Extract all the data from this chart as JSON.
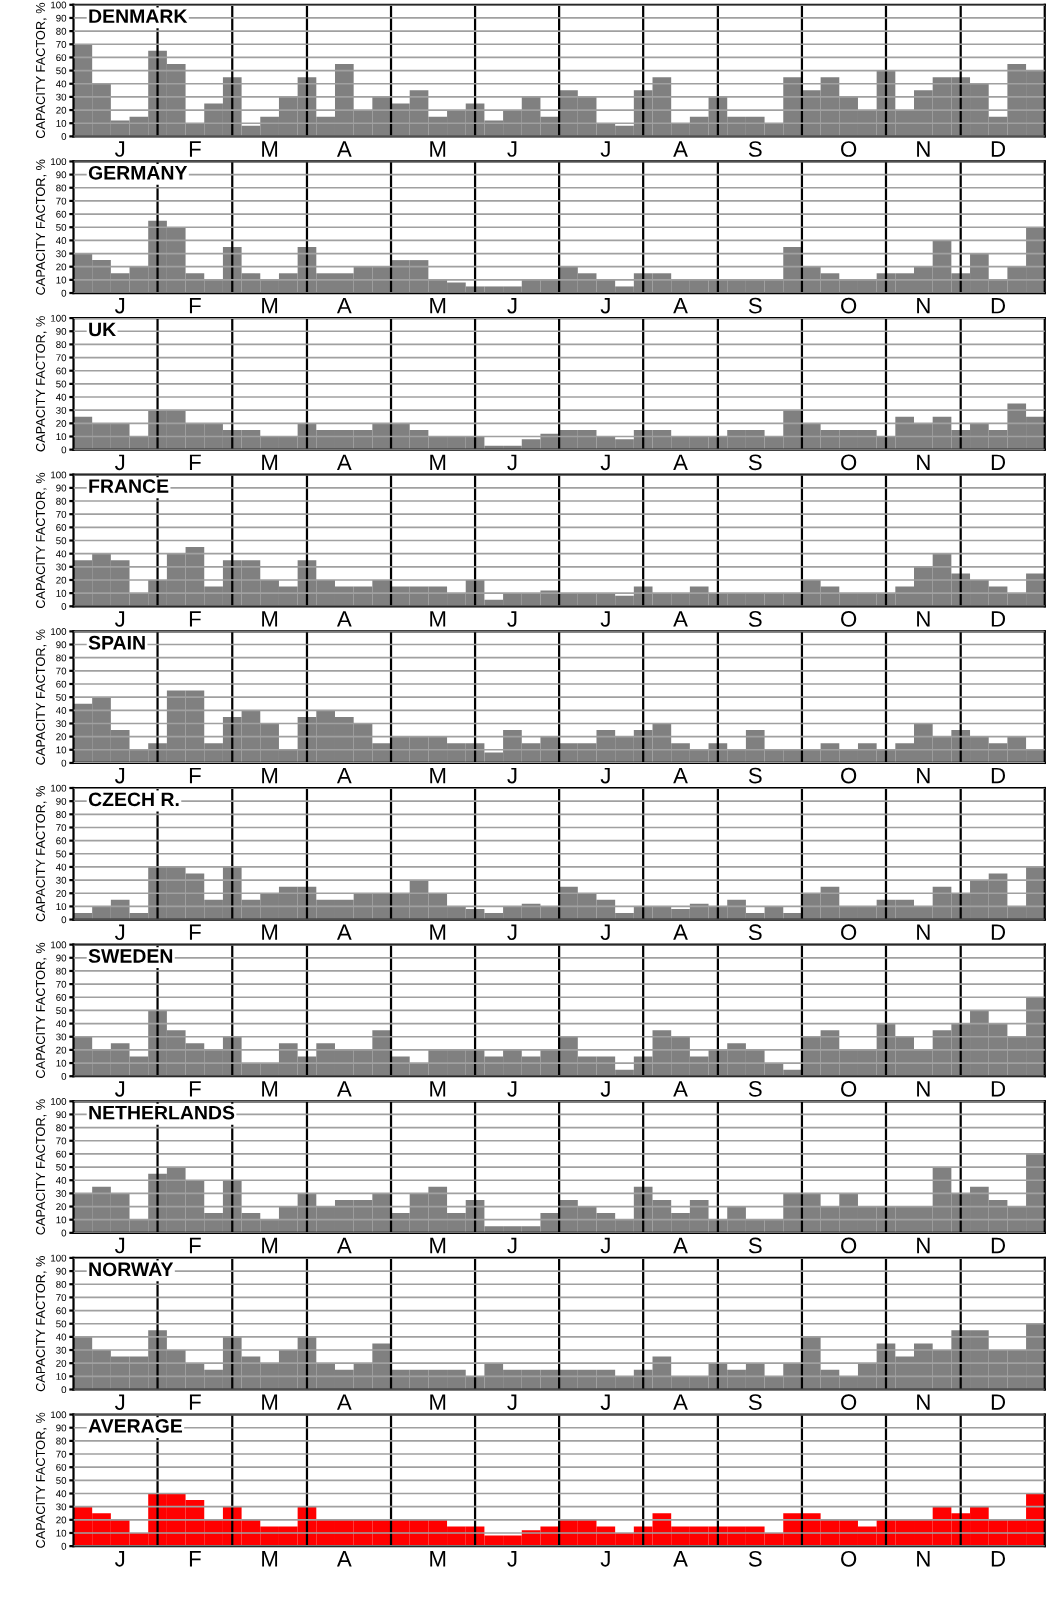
{
  "chart_data": [
    {
      "type": "bar",
      "title": "DENMARK",
      "ylabel": "CAPACITY FACTOR, %",
      "color": "#808080",
      "grid": true,
      "ylim": [
        0,
        100
      ],
      "yticks": [
        0,
        10,
        20,
        30,
        40,
        50,
        60,
        70,
        80,
        90,
        100
      ],
      "categories": [
        null,
        null,
        "J",
        null,
        null,
        null,
        "F",
        null,
        null,
        null,
        "M",
        null,
        null,
        null,
        "A",
        null,
        null,
        null,
        null,
        "M",
        null,
        null,
        null,
        "J",
        null,
        null,
        null,
        null,
        "J",
        null,
        null,
        null,
        "A",
        null,
        null,
        null,
        "S",
        null,
        null,
        null,
        null,
        "O",
        null,
        null,
        null,
        "N",
        null,
        null,
        null,
        "D",
        null,
        null
      ],
      "values": [
        70,
        40,
        12,
        15,
        65,
        55,
        10,
        25,
        45,
        8,
        15,
        30,
        45,
        15,
        55,
        20,
        30,
        25,
        35,
        15,
        20,
        25,
        12,
        20,
        30,
        15,
        35,
        30,
        10,
        8,
        35,
        45,
        10,
        15,
        30,
        15,
        15,
        10,
        45,
        35,
        45,
        30,
        20,
        50,
        20,
        35,
        45,
        45,
        40,
        15,
        55,
        50
      ]
    },
    {
      "type": "bar",
      "title": "GERMANY",
      "ylabel": "CAPACITY FACTOR, %",
      "color": "#808080",
      "grid": true,
      "ylim": [
        0,
        100
      ],
      "yticks": [
        0,
        10,
        20,
        30,
        40,
        50,
        60,
        70,
        80,
        90,
        100
      ],
      "categories": [
        null,
        null,
        "J",
        null,
        null,
        null,
        "F",
        null,
        null,
        null,
        "M",
        null,
        null,
        null,
        "A",
        null,
        null,
        null,
        null,
        "M",
        null,
        null,
        null,
        "J",
        null,
        null,
        null,
        null,
        "J",
        null,
        null,
        null,
        "A",
        null,
        null,
        null,
        "S",
        null,
        null,
        null,
        null,
        "O",
        null,
        null,
        null,
        "N",
        null,
        null,
        null,
        "D",
        null,
        null
      ],
      "values": [
        30,
        25,
        15,
        20,
        55,
        50,
        15,
        10,
        35,
        15,
        10,
        15,
        35,
        15,
        15,
        20,
        20,
        25,
        25,
        10,
        8,
        5,
        5,
        5,
        10,
        10,
        20,
        15,
        10,
        5,
        15,
        15,
        10,
        10,
        10,
        10,
        10,
        10,
        35,
        20,
        15,
        10,
        10,
        15,
        15,
        20,
        40,
        15,
        30,
        10,
        20,
        50
      ]
    },
    {
      "type": "bar",
      "title": "UK",
      "ylabel": "CAPACITY FACTOR, %",
      "color": "#808080",
      "grid": true,
      "ylim": [
        0,
        100
      ],
      "yticks": [
        0,
        10,
        20,
        30,
        40,
        50,
        60,
        70,
        80,
        90,
        100
      ],
      "categories": [
        null,
        null,
        "J",
        null,
        null,
        null,
        "F",
        null,
        null,
        null,
        "M",
        null,
        null,
        null,
        "A",
        null,
        null,
        null,
        null,
        "M",
        null,
        null,
        null,
        "J",
        null,
        null,
        null,
        null,
        "J",
        null,
        null,
        null,
        "A",
        null,
        null,
        null,
        "S",
        null,
        null,
        null,
        null,
        "O",
        null,
        null,
        null,
        "N",
        null,
        null,
        null,
        "D",
        null,
        null
      ],
      "values": [
        25,
        20,
        20,
        10,
        30,
        30,
        20,
        20,
        15,
        15,
        10,
        10,
        20,
        15,
        15,
        15,
        20,
        20,
        15,
        10,
        10,
        10,
        3,
        3,
        8,
        12,
        15,
        15,
        10,
        8,
        15,
        15,
        10,
        10,
        10,
        15,
        15,
        10,
        30,
        20,
        15,
        15,
        15,
        10,
        25,
        20,
        25,
        15,
        20,
        15,
        35,
        25
      ]
    },
    {
      "type": "bar",
      "title": "FRANCE",
      "ylabel": "CAPACITY FACTOR, %",
      "color": "#808080",
      "grid": true,
      "ylim": [
        0,
        100
      ],
      "yticks": [
        0,
        10,
        20,
        30,
        40,
        50,
        60,
        70,
        80,
        90,
        100
      ],
      "categories": [
        null,
        null,
        "J",
        null,
        null,
        null,
        "F",
        null,
        null,
        null,
        "M",
        null,
        null,
        null,
        "A",
        null,
        null,
        null,
        null,
        "M",
        null,
        null,
        null,
        "J",
        null,
        null,
        null,
        null,
        "J",
        null,
        null,
        null,
        "A",
        null,
        null,
        null,
        "S",
        null,
        null,
        null,
        null,
        "O",
        null,
        null,
        null,
        "N",
        null,
        null,
        null,
        "D",
        null,
        null
      ],
      "values": [
        35,
        40,
        35,
        10,
        20,
        40,
        45,
        15,
        35,
        35,
        20,
        15,
        35,
        20,
        15,
        15,
        20,
        15,
        15,
        15,
        10,
        20,
        5,
        10,
        10,
        12,
        10,
        10,
        10,
        8,
        15,
        10,
        10,
        15,
        10,
        10,
        10,
        10,
        10,
        20,
        15,
        10,
        10,
        10,
        15,
        30,
        40,
        25,
        20,
        15,
        10,
        25
      ]
    },
    {
      "type": "bar",
      "title": "SPAIN",
      "ylabel": "CAPACITY FACTOR, %",
      "color": "#808080",
      "grid": true,
      "ylim": [
        0,
        100
      ],
      "yticks": [
        0,
        10,
        20,
        30,
        40,
        50,
        60,
        70,
        80,
        90,
        100
      ],
      "categories": [
        null,
        null,
        "J",
        null,
        null,
        null,
        "F",
        null,
        null,
        null,
        "M",
        null,
        null,
        null,
        "A",
        null,
        null,
        null,
        null,
        "M",
        null,
        null,
        null,
        "J",
        null,
        null,
        null,
        null,
        "J",
        null,
        null,
        null,
        "A",
        null,
        null,
        null,
        "S",
        null,
        null,
        null,
        null,
        "O",
        null,
        null,
        null,
        "N",
        null,
        null,
        null,
        "D",
        null,
        null
      ],
      "values": [
        45,
        50,
        25,
        10,
        15,
        55,
        55,
        15,
        35,
        40,
        30,
        10,
        35,
        40,
        35,
        30,
        15,
        20,
        20,
        20,
        15,
        15,
        8,
        25,
        15,
        20,
        15,
        15,
        25,
        20,
        25,
        30,
        15,
        10,
        15,
        10,
        25,
        10,
        10,
        10,
        15,
        10,
        15,
        10,
        15,
        30,
        20,
        25,
        20,
        15,
        20,
        10
      ]
    },
    {
      "type": "bar",
      "title": "CZECH R.",
      "ylabel": "CAPACITY FACTOR, %",
      "color": "#808080",
      "grid": true,
      "ylim": [
        0,
        100
      ],
      "yticks": [
        0,
        10,
        20,
        30,
        40,
        50,
        60,
        70,
        80,
        90,
        100
      ],
      "categories": [
        null,
        null,
        "J",
        null,
        null,
        null,
        "F",
        null,
        null,
        null,
        "M",
        null,
        null,
        null,
        "A",
        null,
        null,
        null,
        null,
        "M",
        null,
        null,
        null,
        "J",
        null,
        null,
        null,
        null,
        "J",
        null,
        null,
        null,
        "A",
        null,
        null,
        null,
        "S",
        null,
        null,
        null,
        null,
        "O",
        null,
        null,
        null,
        "N",
        null,
        null,
        null,
        "D",
        null,
        null
      ],
      "values": [
        5,
        10,
        15,
        5,
        40,
        40,
        35,
        15,
        40,
        15,
        20,
        25,
        25,
        15,
        15,
        20,
        20,
        20,
        30,
        20,
        10,
        8,
        5,
        10,
        12,
        10,
        25,
        20,
        15,
        5,
        10,
        10,
        8,
        12,
        10,
        15,
        5,
        10,
        5,
        20,
        25,
        10,
        10,
        15,
        15,
        10,
        25,
        20,
        30,
        35,
        10,
        40
      ]
    },
    {
      "type": "bar",
      "title": "SWEDEN",
      "ylabel": "CAPACITY FACTOR, %",
      "color": "#808080",
      "grid": true,
      "ylim": [
        0,
        100
      ],
      "yticks": [
        0,
        10,
        20,
        30,
        40,
        50,
        60,
        70,
        80,
        90,
        100
      ],
      "categories": [
        null,
        null,
        "J",
        null,
        null,
        null,
        "F",
        null,
        null,
        null,
        "M",
        null,
        null,
        null,
        "A",
        null,
        null,
        null,
        null,
        "M",
        null,
        null,
        null,
        "J",
        null,
        null,
        null,
        null,
        "J",
        null,
        null,
        null,
        "A",
        null,
        null,
        null,
        "S",
        null,
        null,
        null,
        null,
        "O",
        null,
        null,
        null,
        "N",
        null,
        null,
        null,
        "D",
        null,
        null
      ],
      "values": [
        30,
        20,
        25,
        15,
        50,
        35,
        25,
        20,
        30,
        10,
        10,
        25,
        15,
        25,
        20,
        20,
        35,
        15,
        10,
        20,
        20,
        20,
        15,
        20,
        15,
        20,
        30,
        15,
        15,
        5,
        15,
        35,
        30,
        15,
        20,
        25,
        20,
        10,
        5,
        30,
        35,
        20,
        20,
        40,
        30,
        20,
        35,
        40,
        50,
        40,
        30,
        60
      ]
    },
    {
      "type": "bar",
      "title": "NETHERLANDS",
      "ylabel": "CAPACITY FACTOR, %",
      "color": "#808080",
      "grid": true,
      "ylim": [
        0,
        100
      ],
      "yticks": [
        0,
        10,
        20,
        30,
        40,
        50,
        60,
        70,
        80,
        90,
        100
      ],
      "categories": [
        null,
        null,
        "J",
        null,
        null,
        null,
        "F",
        null,
        null,
        null,
        "M",
        null,
        null,
        null,
        "A",
        null,
        null,
        null,
        null,
        "M",
        null,
        null,
        null,
        "J",
        null,
        null,
        null,
        null,
        "J",
        null,
        null,
        null,
        "A",
        null,
        null,
        null,
        "S",
        null,
        null,
        null,
        null,
        "O",
        null,
        null,
        null,
        "N",
        null,
        null,
        null,
        "D",
        null,
        null
      ],
      "values": [
        30,
        35,
        30,
        10,
        45,
        50,
        40,
        15,
        40,
        15,
        10,
        20,
        30,
        20,
        25,
        25,
        30,
        15,
        30,
        35,
        15,
        25,
        5,
        5,
        5,
        15,
        25,
        20,
        15,
        10,
        35,
        25,
        15,
        25,
        10,
        20,
        10,
        10,
        30,
        30,
        20,
        30,
        20,
        20,
        20,
        20,
        50,
        30,
        35,
        25,
        20,
        60
      ]
    },
    {
      "type": "bar",
      "title": "NORWAY",
      "ylabel": "CAPACITY FACTOR, %",
      "color": "#808080",
      "grid": true,
      "ylim": [
        0,
        100
      ],
      "yticks": [
        0,
        10,
        20,
        30,
        40,
        50,
        60,
        70,
        80,
        90,
        100
      ],
      "categories": [
        null,
        null,
        "J",
        null,
        null,
        null,
        "F",
        null,
        null,
        null,
        "M",
        null,
        null,
        null,
        "A",
        null,
        null,
        null,
        null,
        "M",
        null,
        null,
        null,
        "J",
        null,
        null,
        null,
        null,
        "J",
        null,
        null,
        null,
        "A",
        null,
        null,
        null,
        "S",
        null,
        null,
        null,
        null,
        "O",
        null,
        null,
        null,
        "N",
        null,
        null,
        null,
        "D",
        null,
        null
      ],
      "values": [
        40,
        30,
        25,
        25,
        45,
        30,
        20,
        15,
        40,
        25,
        20,
        30,
        40,
        20,
        15,
        20,
        35,
        15,
        15,
        15,
        15,
        10,
        20,
        15,
        15,
        15,
        15,
        15,
        15,
        10,
        15,
        25,
        10,
        10,
        20,
        15,
        20,
        10,
        20,
        40,
        15,
        10,
        20,
        35,
        25,
        35,
        30,
        45,
        45,
        30,
        30,
        50
      ]
    },
    {
      "type": "bar",
      "title": "AVERAGE",
      "ylabel": "CAPACITY FACTOR, %",
      "color": "#ff0000",
      "grid": true,
      "ylim": [
        0,
        100
      ],
      "yticks": [
        0,
        10,
        20,
        30,
        40,
        50,
        60,
        70,
        80,
        90,
        100
      ],
      "categories": [
        null,
        null,
        "J",
        null,
        null,
        null,
        "F",
        null,
        null,
        null,
        "M",
        null,
        null,
        null,
        "A",
        null,
        null,
        null,
        null,
        "M",
        null,
        null,
        null,
        "J",
        null,
        null,
        null,
        null,
        "J",
        null,
        null,
        null,
        "A",
        null,
        null,
        null,
        "S",
        null,
        null,
        null,
        null,
        "O",
        null,
        null,
        null,
        "N",
        null,
        null,
        null,
        "D",
        null,
        null
      ],
      "values": [
        30,
        25,
        20,
        10,
        40,
        40,
        35,
        20,
        30,
        20,
        15,
        15,
        30,
        20,
        20,
        20,
        20,
        20,
        20,
        20,
        15,
        15,
        8,
        8,
        12,
        15,
        20,
        20,
        15,
        10,
        15,
        25,
        15,
        15,
        15,
        15,
        15,
        10,
        25,
        25,
        20,
        20,
        15,
        20,
        20,
        20,
        30,
        25,
        30,
        20,
        20,
        40
      ]
    }
  ]
}
